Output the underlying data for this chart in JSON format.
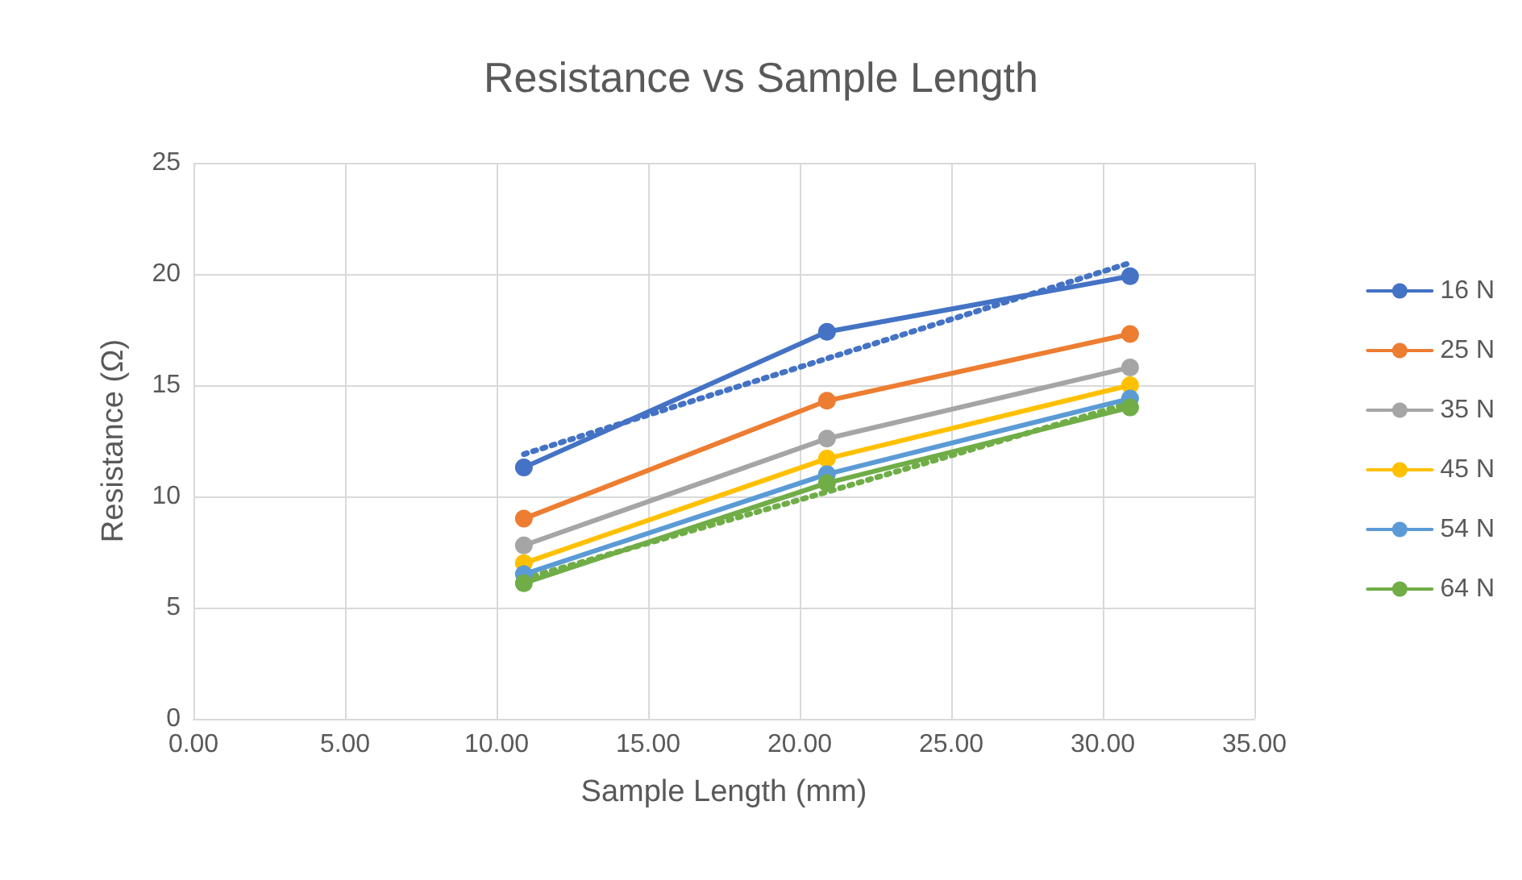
{
  "chart_data": {
    "type": "line",
    "title": "Resistance vs Sample Length",
    "xlabel": "Sample Length (mm)",
    "ylabel": "Resistance (Ω)",
    "x": [
      10.9,
      20.9,
      30.9
    ],
    "series": [
      {
        "name": "16 N",
        "color": "#4472c4",
        "values": [
          11.3,
          17.4,
          19.9
        ]
      },
      {
        "name": "25 N",
        "color": "#ed7d31",
        "values": [
          9.0,
          14.3,
          17.3
        ]
      },
      {
        "name": "35 N",
        "color": "#a5a5a5",
        "values": [
          7.8,
          12.6,
          15.8
        ]
      },
      {
        "name": "45 N",
        "color": "#ffc000",
        "values": [
          7.0,
          11.7,
          15.0
        ]
      },
      {
        "name": "54 N",
        "color": "#5b9bd5",
        "values": [
          6.5,
          11.0,
          14.4
        ]
      },
      {
        "name": "64 N",
        "color": "#70ad47",
        "values": [
          6.1,
          10.6,
          14.0
        ]
      },
      {
        "type": "line",
        "color": "#4472c4",
        "x": [
          10.9,
          20.9,
          30.9
        ],
        "values": [
          11.9,
          16.2,
          20.5
        ],
        "line_style": "dotted",
        "marker": "none"
      },
      {
        "type": "line",
        "color": "#70ad47",
        "x": [
          10.9,
          20.9,
          30.9
        ],
        "values": [
          6.3,
          10.2,
          14.2
        ],
        "line_style": "dotted",
        "marker": "none"
      }
    ],
    "xlim": [
      0,
      35
    ],
    "xticks": [
      {
        "value": 0,
        "label": "0.00"
      },
      {
        "value": 5,
        "label": "5.00"
      },
      {
        "value": 10,
        "label": "10.00"
      },
      {
        "value": 15,
        "label": "15.00"
      },
      {
        "value": 20,
        "label": "20.00"
      },
      {
        "value": 25,
        "label": "25.00"
      },
      {
        "value": 30,
        "label": "30.00"
      },
      {
        "value": 35,
        "label": "35.00"
      }
    ],
    "ylim": [
      0,
      25
    ],
    "yticks": [
      0,
      5,
      10,
      15,
      20,
      25
    ],
    "grid": true,
    "legend": "right",
    "marker": "circle",
    "line_style": "solid"
  }
}
